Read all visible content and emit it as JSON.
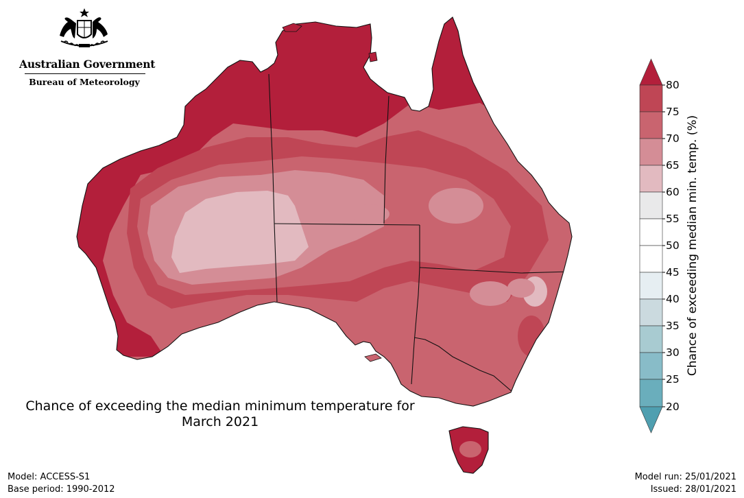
{
  "logo": {
    "government": "Australian Government",
    "agency": "Bureau of Meteorology"
  },
  "map": {
    "title_line1": "Chance of exceeding the median minimum temperature for",
    "title_line2": "March 2021",
    "region": "Australia",
    "dominant_category": "70-80",
    "category_colors": {
      "20-25": "#6aaebc",
      "25-30": "#88bcc8",
      "30-35": "#a8cbd1",
      "35-40": "#cbdadf",
      "40-45": "#e6eef2",
      "45-50": "#ffffff",
      "50-55": "#ffffff",
      "55-60": "#e9e9ea",
      "60-65": "#e2bac0",
      "65-70": "#d48d96",
      "70-75": "#c9646f",
      "75-80": "#bf4655",
      "80+": "#b31f3b"
    }
  },
  "colorbar": {
    "label": "Chance of exceeding median min. temp. (%)",
    "ticks": [
      "80",
      "75",
      "70",
      "65",
      "60",
      "55",
      "50",
      "45",
      "40",
      "35",
      "30",
      "25",
      "20"
    ]
  },
  "footer": {
    "model": "Model: ACCESS-S1",
    "base_period": "Base period: 1990-2012",
    "model_run": "Model run: 25/01/2021",
    "issued": "Issued: 28/01/2021"
  }
}
